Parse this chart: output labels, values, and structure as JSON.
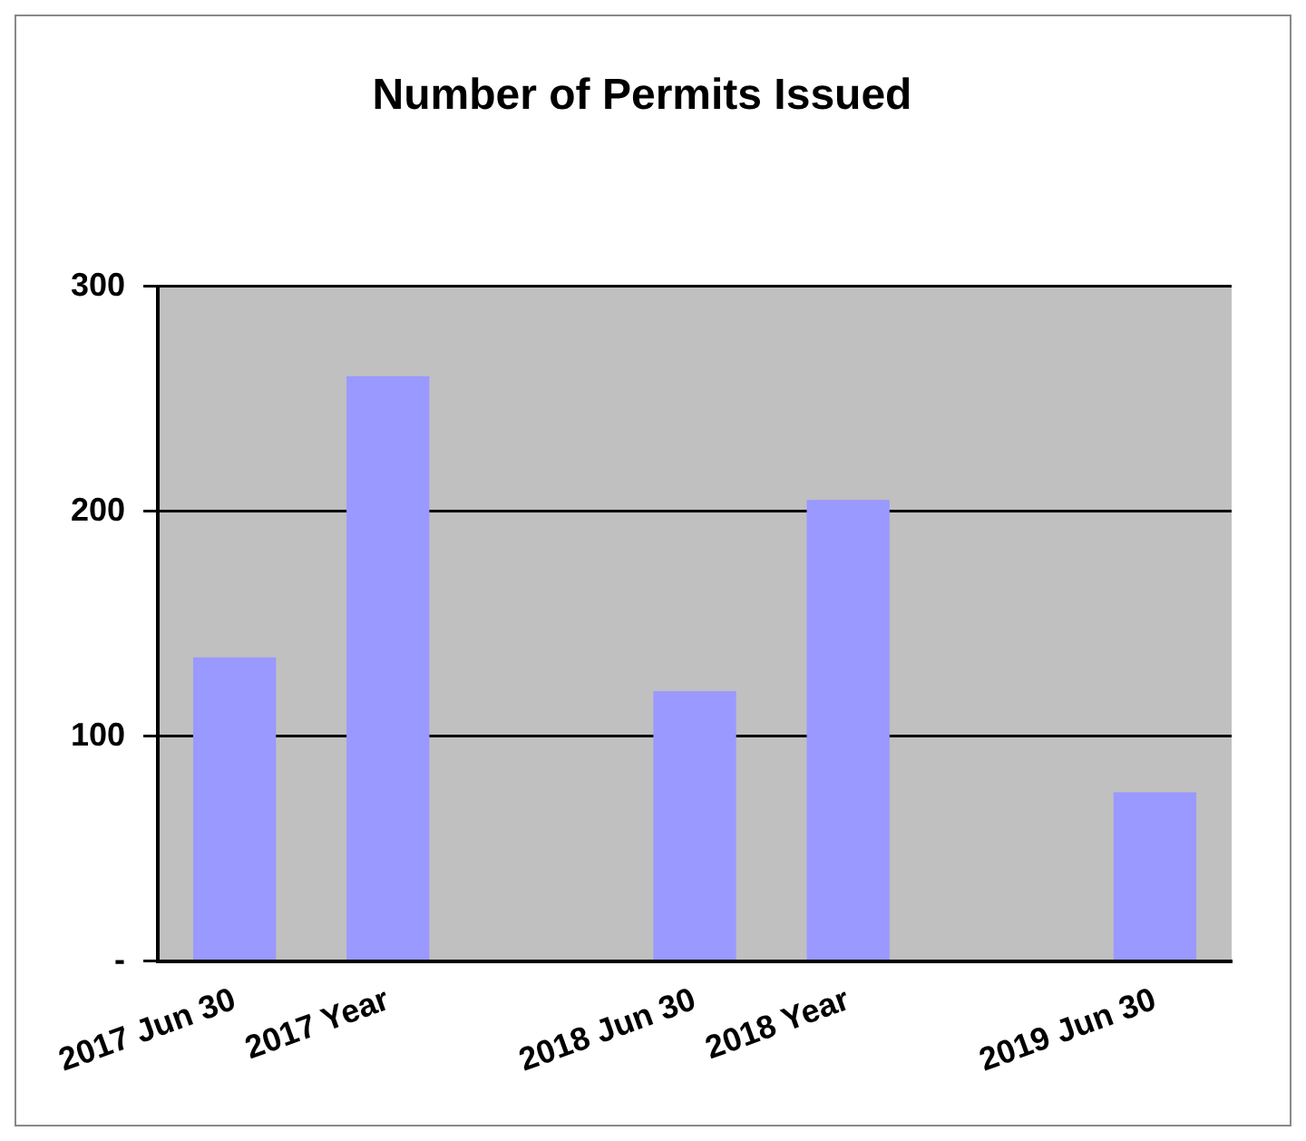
{
  "chart_data": {
    "type": "bar",
    "title": "Number of Permits Issued",
    "categories": [
      "2017 Jun 30",
      "2017 Year",
      null,
      "2018 Jun 30",
      "2018 Year",
      null,
      "2019 Jun 30"
    ],
    "values": [
      135,
      260,
      null,
      120,
      205,
      null,
      75
    ],
    "color": "#9999ff",
    "ylim": [
      0,
      300
    ],
    "yticks": [
      {
        "value": 0,
        "label": "-"
      },
      100,
      200,
      300
    ],
    "grid": "y"
  }
}
